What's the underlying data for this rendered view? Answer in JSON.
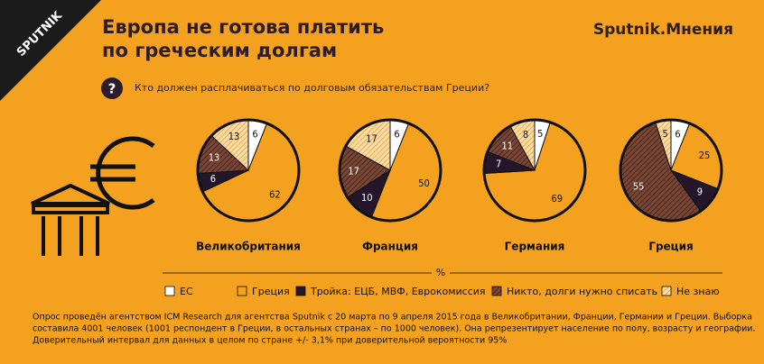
{
  "header": {
    "title": [
      "Европа не готова платить",
      "по греческим долгам"
    ],
    "logo": "SPUTNIK",
    "brand": "Sputnik.Мнения"
  },
  "question": {
    "icon": "?",
    "text": "Кто должен расплачиваться по долговым обязательствам Греции?"
  },
  "legend": {
    "title": "%",
    "labels": [
      "ЕС",
      "Греция",
      "Тройка: ЕЦБ, МВФ, Еврокомиссия",
      "Никто, долги нужно списать",
      "Не знаю"
    ],
    "colors": [
      "#ffffff",
      "#f4a11f",
      "#25172b",
      "#7a4632",
      "#f6dcae"
    ],
    "hatch": [
      false,
      false,
      false,
      true,
      true
    ]
  },
  "chart_data": [
    {
      "type": "pie",
      "title": "Великобритания",
      "values": [
        6,
        62,
        6,
        13,
        13
      ]
    },
    {
      "type": "pie",
      "title": "Франция",
      "values": [
        6,
        50,
        10,
        17,
        17
      ]
    },
    {
      "type": "pie",
      "title": "Германия",
      "values": [
        5,
        69,
        7,
        11,
        8
      ]
    },
    {
      "type": "pie",
      "title": "Греция",
      "values": [
        6,
        25,
        9,
        55,
        5
      ]
    }
  ],
  "footnote": [
    "Опрос проведён агентством ICM Research для агентства Sputnik с 20 марта по 9 апреля 2015 года в Великобритании, Франции, Германии и Греции. Выборка",
    "составила 4001 человек (1001 респондент в Греции, в остальных странах – по 1000 человек). Она репрезентирует население по полу, возрасту и географии.",
    "Доверительный интервал для данных в целом по стране +/- 3,1% при доверительной вероятности 95%"
  ]
}
